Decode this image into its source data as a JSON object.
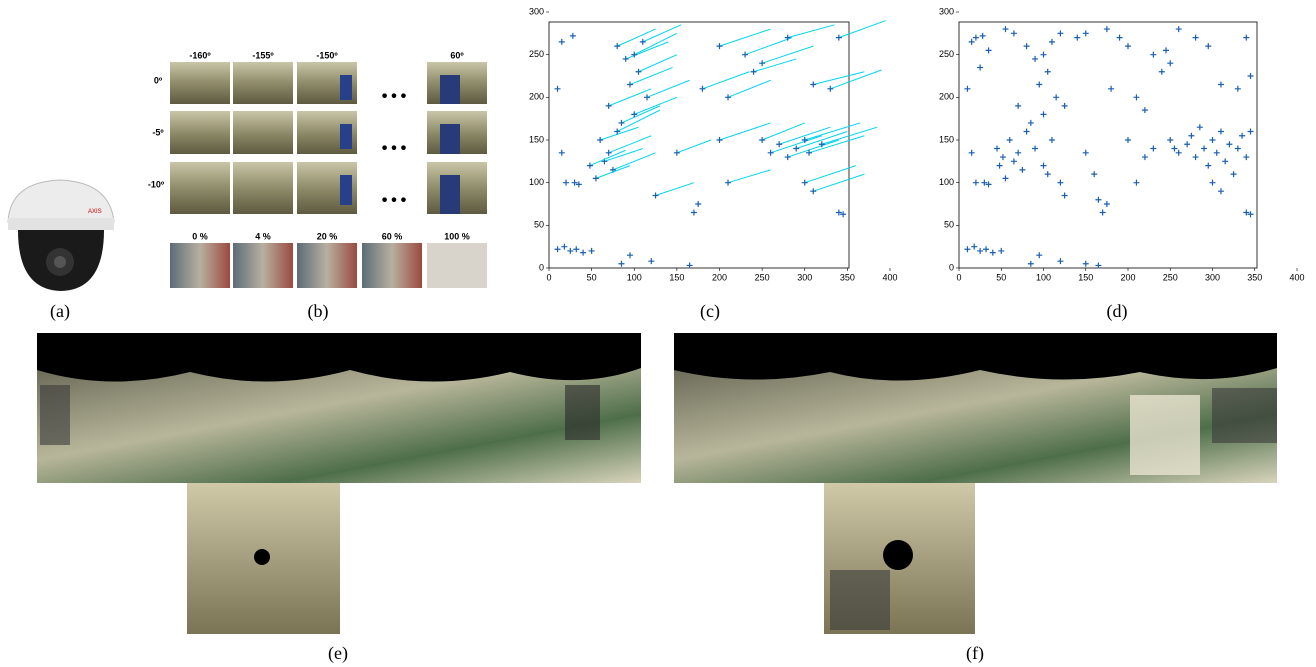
{
  "panel_labels": [
    "(a)",
    "(b)",
    "(c)",
    "(d)",
    "(e)",
    "(f)"
  ],
  "angle_labels": [
    "-160º",
    "-155º",
    "-150º",
    "60º"
  ],
  "tilt_labels": [
    "0º",
    "-5º",
    "-10º"
  ],
  "zoom_labels": [
    "0 %",
    "4 %",
    "20 %",
    "60 %",
    "100 %"
  ],
  "ellipsis": "•••",
  "chart_data": [
    {
      "type": "scatter",
      "xlim": [
        0,
        400
      ],
      "ylim": [
        0,
        300
      ],
      "xticks": [
        0,
        50,
        100,
        150,
        200,
        250,
        300,
        350,
        400
      ],
      "yticks": [
        0,
        50,
        100,
        150,
        200,
        250,
        300
      ],
      "color": "#1a5fb4",
      "line_color": "#00d5f0",
      "tracks": {
        "x": [
          60,
          65,
          70,
          75,
          80,
          48,
          55,
          90,
          100,
          110,
          80,
          105,
          95,
          85,
          70,
          100,
          115,
          200,
          230,
          180,
          210,
          240,
          250,
          280,
          310,
          330,
          340,
          250,
          260,
          270,
          280,
          290,
          300,
          305,
          320,
          300,
          310,
          200,
          210,
          150,
          125
        ],
        "y": [
          150,
          125,
          135,
          115,
          160,
          120,
          105,
          245,
          250,
          265,
          260,
          230,
          215,
          170,
          190,
          180,
          200,
          260,
          250,
          210,
          200,
          230,
          240,
          270,
          215,
          210,
          270,
          150,
          135,
          145,
          130,
          140,
          150,
          135,
          145,
          100,
          90,
          150,
          100,
          135,
          85
        ],
        "x_end": [
          105,
          110,
          120,
          125,
          130,
          90,
          95,
          140,
          150,
          155,
          125,
          150,
          145,
          130,
          120,
          150,
          165,
          260,
          285,
          235,
          260,
          290,
          310,
          335,
          370,
          390,
          395,
          300,
          320,
          330,
          340,
          350,
          365,
          370,
          385,
          360,
          370,
          260,
          260,
          190,
          170
        ],
        "y_end": [
          165,
          140,
          155,
          135,
          185,
          138,
          120,
          265,
          275,
          285,
          280,
          250,
          235,
          190,
          210,
          200,
          220,
          280,
          270,
          230,
          220,
          245,
          260,
          285,
          230,
          232,
          290,
          170,
          155,
          165,
          150,
          160,
          170,
          155,
          165,
          120,
          110,
          170,
          115,
          150,
          100
        ]
      },
      "points": {
        "x": [
          10,
          18,
          25,
          32,
          40,
          50,
          85,
          95,
          120,
          165,
          20,
          30,
          35,
          15,
          10,
          15,
          28,
          345,
          340,
          170,
          175
        ],
        "y": [
          22,
          25,
          20,
          22,
          18,
          20,
          5,
          15,
          8,
          3,
          100,
          100,
          98,
          135,
          210,
          265,
          272,
          63,
          65,
          65,
          75
        ]
      }
    },
    {
      "type": "scatter",
      "xlim": [
        0,
        400
      ],
      "ylim": [
        0,
        300
      ],
      "xticks": [
        0,
        50,
        100,
        150,
        200,
        250,
        300,
        350,
        400
      ],
      "yticks": [
        0,
        50,
        100,
        150,
        200,
        250,
        300
      ],
      "color": "#1a5fb4",
      "points": {
        "x": [
          10,
          18,
          25,
          32,
          40,
          50,
          85,
          95,
          120,
          150,
          165,
          45,
          48,
          52,
          55,
          60,
          65,
          70,
          75,
          80,
          20,
          30,
          35,
          15,
          10,
          15,
          20,
          28,
          35,
          25,
          55,
          65,
          80,
          90,
          100,
          110,
          120,
          105,
          95,
          115,
          125,
          100,
          85,
          70,
          90,
          100,
          105,
          110,
          120,
          125,
          140,
          150,
          175,
          190,
          200,
          210,
          220,
          180,
          230,
          240,
          245,
          250,
          260,
          280,
          295,
          310,
          330,
          345,
          340,
          250,
          255,
          260,
          270,
          275,
          280,
          285,
          290,
          295,
          300,
          305,
          310,
          315,
          320,
          325,
          330,
          335,
          340,
          345,
          300,
          310,
          230,
          220,
          200,
          210,
          150,
          165,
          170,
          175,
          340,
          345,
          160
        ],
        "y": [
          22,
          25,
          20,
          22,
          18,
          20,
          5,
          15,
          8,
          5,
          3,
          140,
          120,
          130,
          105,
          150,
          125,
          135,
          115,
          160,
          100,
          100,
          98,
          135,
          210,
          265,
          270,
          272,
          255,
          235,
          280,
          275,
          260,
          245,
          250,
          265,
          275,
          230,
          215,
          200,
          190,
          180,
          170,
          190,
          140,
          120,
          110,
          150,
          100,
          85,
          270,
          275,
          280,
          270,
          260,
          200,
          185,
          210,
          250,
          230,
          255,
          240,
          280,
          270,
          260,
          215,
          210,
          225,
          270,
          150,
          140,
          135,
          145,
          155,
          130,
          165,
          140,
          120,
          150,
          135,
          160,
          125,
          145,
          110,
          140,
          155,
          130,
          160,
          100,
          90,
          140,
          130,
          150,
          100,
          135,
          80,
          65,
          75,
          65,
          63,
          110
        ]
      }
    }
  ]
}
